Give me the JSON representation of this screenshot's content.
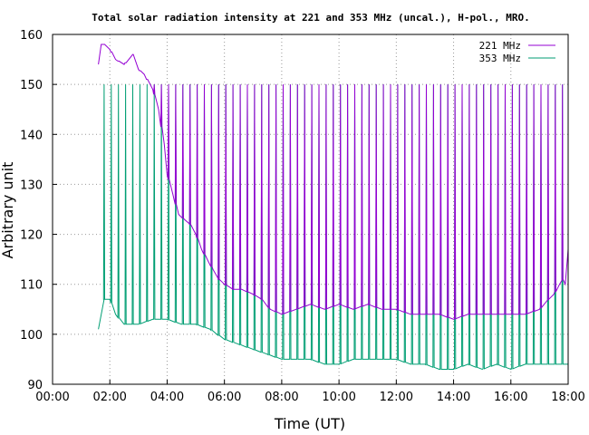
{
  "chart_data": {
    "type": "line",
    "title": "Total solar radiation intensity at 221 and 353 MHz (uncal.), H-pol., MRO.",
    "xlabel": "Time (UT)",
    "ylabel": "Arbitrary unit",
    "xlim": [
      0,
      18
    ],
    "ylim": [
      90,
      160
    ],
    "x_ticks": [
      "00:00",
      "02:00",
      "04:00",
      "06:00",
      "08:00",
      "10:00",
      "12:00",
      "14:00",
      "16:00",
      "18:00"
    ],
    "y_ticks": [
      "90",
      "100",
      "110",
      "120",
      "130",
      "140",
      "150",
      "160"
    ],
    "grid": true,
    "legend_position": "top-right",
    "series": [
      {
        "name": "221 MHz",
        "color": "#9400d3",
        "x": [
          1.6,
          1.7,
          1.8,
          2.0,
          2.2,
          2.5,
          2.8,
          3.0,
          3.2,
          3.5,
          3.7,
          3.9,
          4.0,
          4.2,
          4.4,
          4.6,
          4.8,
          5.0,
          5.2,
          5.4,
          5.6,
          5.8,
          6.0,
          6.3,
          6.6,
          7.0,
          7.3,
          7.6,
          8.0,
          8.5,
          9.0,
          9.5,
          10.0,
          10.5,
          11.0,
          11.5,
          12.0,
          12.5,
          13.0,
          13.5,
          14.0,
          14.5,
          15.0,
          15.5,
          16.0,
          16.5,
          17.0,
          17.3,
          17.5,
          17.7,
          17.8,
          17.9,
          18.0
        ],
        "y": [
          154,
          158,
          158,
          157,
          155,
          154,
          156,
          153,
          152,
          149,
          145,
          138,
          132,
          128,
          124,
          123,
          122,
          120,
          117,
          115,
          113,
          111,
          110,
          109,
          109,
          108,
          107,
          105,
          104,
          105,
          106,
          105,
          106,
          105,
          106,
          105,
          105,
          104,
          104,
          104,
          103,
          104,
          104,
          104,
          104,
          104,
          105,
          107,
          108,
          110,
          111,
          110,
          117
        ]
      },
      {
        "name": "353 MHz",
        "color": "#009e73",
        "x": [
          1.6,
          1.8,
          2.0,
          2.2,
          2.5,
          3.0,
          3.5,
          4.0,
          4.5,
          5.0,
          5.5,
          6.0,
          6.5,
          7.0,
          7.5,
          8.0,
          8.5,
          9.0,
          9.5,
          10.0,
          10.5,
          11.0,
          11.5,
          12.0,
          12.5,
          13.0,
          13.5,
          14.0,
          14.5,
          15.0,
          15.5,
          16.0,
          16.5,
          17.0,
          17.5,
          18.0
        ],
        "y": [
          101,
          107,
          107,
          104,
          102,
          102,
          103,
          103,
          102,
          102,
          101,
          99,
          98,
          97,
          96,
          95,
          95,
          95,
          94,
          94,
          95,
          95,
          95,
          95,
          94,
          94,
          93,
          93,
          94,
          93,
          94,
          93,
          94,
          94,
          94,
          94
        ]
      }
    ],
    "spikes": {
      "description": "Periodic spikes every ~0.25 h from 01:45 to 18:00",
      "start": 1.8,
      "interval": 0.25,
      "end": 17.9,
      "series_221_peak": 150,
      "series_353_peak": 150
    }
  }
}
